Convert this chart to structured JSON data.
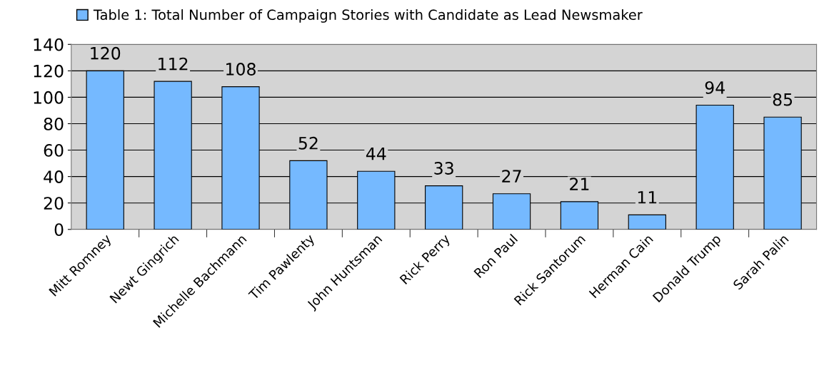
{
  "chart_data": {
    "type": "bar",
    "categories": [
      "Mitt Romney",
      "Newt Gingrich",
      "Michelle Bachmann",
      "Tim Pawlenty",
      "John Huntsman",
      "Rick Perry",
      "Ron Paul",
      "Rick Santorum",
      "Herman Cain",
      "Donald Trump",
      "Sarah Palin"
    ],
    "series": [
      {
        "name": "Table 1: Total Number of Campaign Stories with Candidate as Lead Newsmaker",
        "color": "#75b9ff",
        "values": [
          120,
          112,
          108,
          52,
          44,
          33,
          27,
          21,
          11,
          94,
          85
        ]
      }
    ],
    "ylim": [
      0,
      140
    ],
    "yticks": [
      0,
      20,
      40,
      60,
      80,
      100,
      120,
      140
    ],
    "grid": "y",
    "legend": "top",
    "data_labels": true
  }
}
